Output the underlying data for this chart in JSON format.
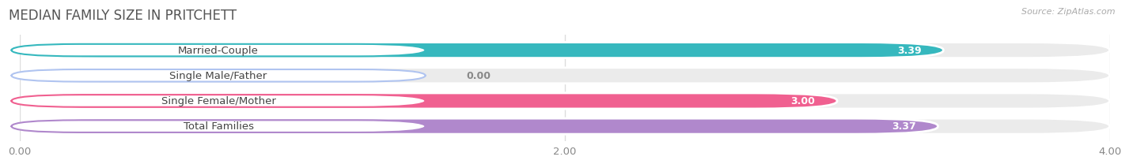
{
  "title": "MEDIAN FAMILY SIZE IN PRITCHETT",
  "source": "Source: ZipAtlas.com",
  "categories": [
    "Married-Couple",
    "Single Male/Father",
    "Single Female/Mother",
    "Total Families"
  ],
  "values": [
    3.39,
    0.0,
    3.0,
    3.37
  ],
  "bar_colors": [
    "#36b8be",
    "#b0c4f0",
    "#f06090",
    "#b088cc"
  ],
  "bar_label_colors": [
    "#36b8be",
    "#b0c4f0",
    "#f06090",
    "#b088cc"
  ],
  "background_color": "#ffffff",
  "bar_bg_color": "#ebebeb",
  "xlim": [
    0.0,
    4.0
  ],
  "xticks": [
    0.0,
    2.0,
    4.0
  ],
  "xticklabels": [
    "0.00",
    "2.00",
    "4.00"
  ],
  "label_fontsize": 9.5,
  "value_fontsize": 9,
  "title_fontsize": 12
}
